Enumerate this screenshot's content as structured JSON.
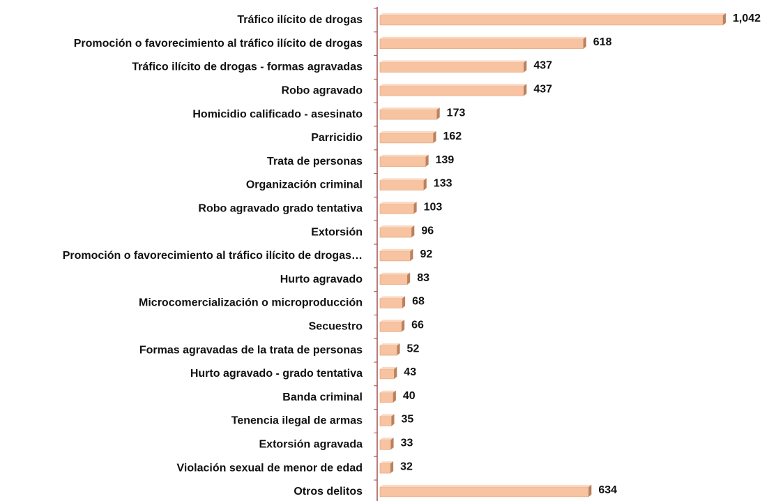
{
  "chart_data": {
    "type": "bar",
    "orientation": "horizontal",
    "color": "#f7c3a0",
    "categories": [
      "Tráfico ilícito de drogas",
      "Promoción o favorecimiento al tráfico ilícito de drogas",
      "Tráfico ilícito de drogas - formas agravadas",
      "Robo agravado",
      "Homicidio calificado - asesinato",
      "Parricidio",
      "Trata de personas",
      "Organización criminal",
      "Robo agravado grado tentativa",
      "Extorsión",
      "Promoción o favorecimiento al tráfico ilícito de drogas…",
      "Hurto agravado",
      "Microcomercialización o microproducción",
      "Secuestro",
      "Formas agravadas de la trata de personas",
      "Hurto agravado - grado tentativa",
      "Banda criminal",
      "Tenencia ilegal de armas",
      "Extorsión agravada",
      "Violación sexual de menor de edad",
      "Otros delitos"
    ],
    "values": [
      1042,
      618,
      437,
      437,
      173,
      162,
      139,
      133,
      103,
      96,
      92,
      83,
      68,
      66,
      52,
      43,
      40,
      35,
      33,
      32,
      634
    ],
    "value_labels": [
      "1,042",
      "618",
      "437",
      "437",
      "173",
      "162",
      "139",
      "133",
      "103",
      "96",
      "92",
      "83",
      "68",
      "66",
      "52",
      "43",
      "40",
      "35",
      "33",
      "32",
      "634"
    ]
  }
}
